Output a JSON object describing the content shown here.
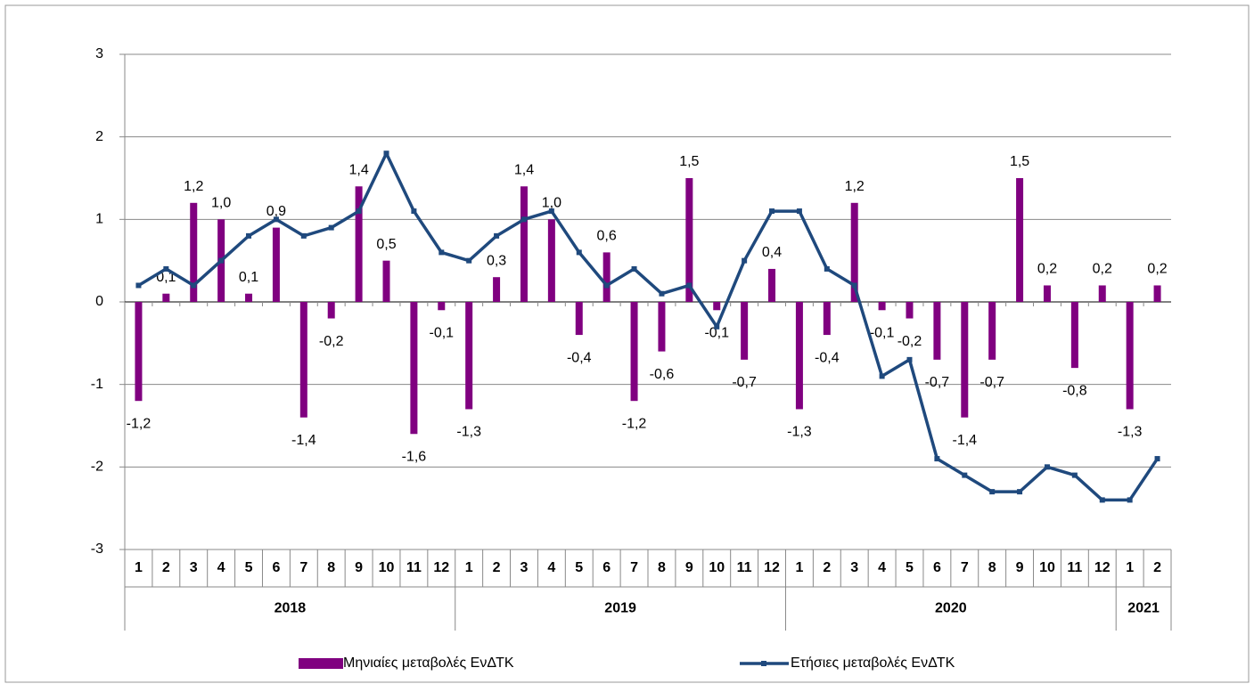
{
  "chart_data": {
    "type": "bar-line",
    "groups": [
      {
        "name": "2018",
        "categories": [
          "1",
          "2",
          "3",
          "4",
          "5",
          "6",
          "7",
          "8",
          "9",
          "10",
          "11",
          "12"
        ]
      },
      {
        "name": "2019",
        "categories": [
          "1",
          "2",
          "3",
          "4",
          "5",
          "6",
          "7",
          "8",
          "9",
          "10",
          "11",
          "12"
        ]
      },
      {
        "name": "2020",
        "categories": [
          "1",
          "2",
          "3",
          "4",
          "5",
          "6",
          "7",
          "8",
          "9",
          "10",
          "11",
          "12"
        ]
      },
      {
        "name": "2021",
        "categories": [
          "1",
          "2"
        ]
      }
    ],
    "series": [
      {
        "name": "Μηνιαίες μεταβολές ΕνΔΤΚ",
        "type": "bar",
        "color": "#800080",
        "values": [
          -1.2,
          0.1,
          1.2,
          1.0,
          0.1,
          0.9,
          -1.4,
          -0.2,
          1.4,
          0.5,
          -1.6,
          -0.1,
          -1.3,
          0.3,
          1.4,
          1.0,
          -0.4,
          0.6,
          -1.2,
          -0.6,
          1.5,
          -0.1,
          -0.7,
          0.4,
          -1.3,
          -0.4,
          1.2,
          -0.1,
          -0.2,
          -0.7,
          -1.4,
          -0.7,
          1.5,
          0.2,
          -0.8,
          0.2,
          -1.3,
          0.2
        ],
        "value_labels": [
          "-1,2",
          "0,1",
          "1,2",
          "1,0",
          "0,1",
          "0,9",
          "-1,4",
          "-0,2",
          "1,4",
          "0,5",
          "-1,6",
          "-0,1",
          "-1,3",
          "0,3",
          "1,4",
          "1,0",
          "-0,4",
          "0,6",
          "-1,2",
          "-0,6",
          "1,5",
          "-0,1",
          "-0,7",
          "0,4",
          "-1,3",
          "-0,4",
          "1,2",
          "-0,1",
          "-0,2",
          "-0,7",
          "-1,4",
          "-0,7",
          "1,5",
          "0,2",
          "-0,8",
          "0,2",
          "-1,3",
          "0,2"
        ]
      },
      {
        "name": "Ετήσιες μεταβολές ΕνΔΤΚ",
        "type": "line",
        "color": "#1f497d",
        "values": [
          0.2,
          0.4,
          0.2,
          0.5,
          0.8,
          1.0,
          0.8,
          0.9,
          1.1,
          1.8,
          1.1,
          0.6,
          0.5,
          0.8,
          1.0,
          1.1,
          0.6,
          0.2,
          0.4,
          0.1,
          0.2,
          -0.3,
          0.5,
          1.1,
          1.1,
          0.4,
          0.2,
          -0.9,
          -0.7,
          -1.9,
          -2.1,
          -2.3,
          -2.3,
          -2.0,
          -2.1,
          -2.4,
          -2.4,
          -1.9
        ]
      }
    ],
    "ylim": [
      -3,
      3
    ],
    "yticks": [
      -3,
      -2,
      -1,
      0,
      1,
      2,
      3
    ],
    "grid": true,
    "legend": "bottom"
  }
}
